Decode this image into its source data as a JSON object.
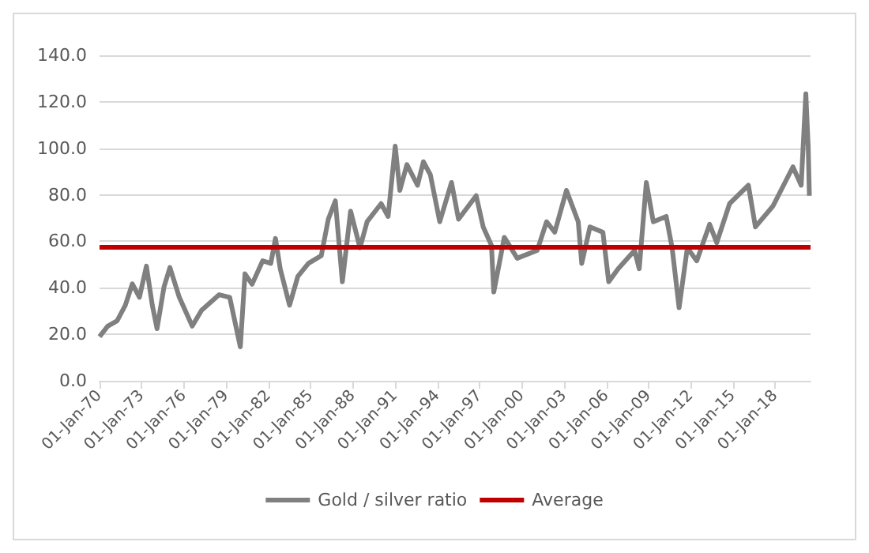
{
  "chart_data": {
    "type": "line",
    "legend": "bottom",
    "grid": "y",
    "marker": "none",
    "line_style": "solid",
    "xlim": [
      "1970-01-01",
      "2020-07-01"
    ],
    "xticks": [
      {
        "value": "1970-01-01",
        "label": "01-Jan-70"
      },
      {
        "value": "1973-01-01",
        "label": "01-Jan-73"
      },
      {
        "value": "1976-01-01",
        "label": "01-Jan-76"
      },
      {
        "value": "1979-01-01",
        "label": "01-Jan-79"
      },
      {
        "value": "1982-01-01",
        "label": "01-Jan-82"
      },
      {
        "value": "1985-01-01",
        "label": "01-Jan-85"
      },
      {
        "value": "1988-01-01",
        "label": "01-Jan-88"
      },
      {
        "value": "1991-01-01",
        "label": "01-Jan-91"
      },
      {
        "value": "1994-01-01",
        "label": "01-Jan-94"
      },
      {
        "value": "1997-01-01",
        "label": "01-Jan-97"
      },
      {
        "value": "2000-01-01",
        "label": "01-Jan-00"
      },
      {
        "value": "2003-01-01",
        "label": "01-Jan-03"
      },
      {
        "value": "2006-01-01",
        "label": "01-Jan-06"
      },
      {
        "value": "2009-01-01",
        "label": "01-Jan-09"
      },
      {
        "value": "2012-01-01",
        "label": "01-Jan-12"
      },
      {
        "value": "2015-01-01",
        "label": "01-Jan-15"
      },
      {
        "value": "2018-01-01",
        "label": "01-Jan-18"
      }
    ],
    "ylim": [
      0,
      140
    ],
    "yticks": [
      {
        "value": 0,
        "label": "0.0"
      },
      {
        "value": 20,
        "label": "20.0"
      },
      {
        "value": 40,
        "label": "40.0"
      },
      {
        "value": 60,
        "label": "60.0"
      },
      {
        "value": 80,
        "label": "80.0"
      },
      {
        "value": 100,
        "label": "100.0"
      },
      {
        "value": 120,
        "label": "120.0"
      },
      {
        "value": 140,
        "label": "140.0"
      }
    ],
    "x": [
      "1970-01",
      "1970-08",
      "1971-04",
      "1971-11",
      "1972-05",
      "1972-11",
      "1973-05",
      "1973-10",
      "1974-02",
      "1974-08",
      "1975-01",
      "1975-09",
      "1976-08",
      "1977-04",
      "1978-07",
      "1979-04",
      "1980-01",
      "1980-05",
      "1980-11",
      "1981-08",
      "1982-03",
      "1982-07",
      "1982-11",
      "1983-07",
      "1984-02",
      "1984-11",
      "1985-10",
      "1986-04",
      "1986-10",
      "1987-04",
      "1987-11",
      "1988-07",
      "1989-01",
      "1990-01",
      "1990-07",
      "1991-01",
      "1991-05",
      "1991-11",
      "1992-08",
      "1993-01",
      "1993-07",
      "1994-03",
      "1995-01",
      "1995-07",
      "1996-10",
      "1997-04",
      "1997-11",
      "1998-01",
      "1998-10",
      "1999-09",
      "2001-02",
      "2001-10",
      "2002-05",
      "2003-03",
      "2004-01",
      "2004-04",
      "2004-11",
      "2005-10",
      "2006-03",
      "2006-11",
      "2008-01",
      "2008-05",
      "2008-11",
      "2009-05",
      "2010-04",
      "2010-09",
      "2011-03",
      "2011-10",
      "2012-06",
      "2013-05",
      "2013-11",
      "2014-10",
      "2016-02",
      "2016-08",
      "2017-11",
      "2019-04",
      "2019-11",
      "2020-03",
      "2020-05",
      "2020-06"
    ],
    "series": [
      {
        "name": "Gold / silver ratio",
        "color": "#808080",
        "values": [
          19.0,
          23.5,
          25.8,
          32.5,
          41.7,
          35.9,
          49.3,
          32.5,
          22.4,
          40.4,
          48.7,
          35.9,
          23.5,
          30.3,
          37.0,
          35.9,
          14.6,
          46.0,
          41.5,
          51.6,
          50.5,
          61.2,
          48.2,
          32.5,
          44.9,
          50.5,
          53.8,
          69.5,
          77.4,
          42.6,
          73.0,
          57.2,
          68.4,
          76.2,
          70.7,
          100.9,
          81.9,
          93.0,
          84.1,
          94.2,
          88.6,
          68.4,
          85.3,
          69.5,
          79.6,
          66.2,
          58.3,
          38.2,
          61.7,
          52.7,
          56.1,
          68.4,
          63.9,
          81.9,
          68.4,
          50.5,
          66.2,
          63.9,
          42.6,
          48.2,
          56.1,
          48.2,
          85.3,
          68.4,
          70.7,
          57.2,
          31.4,
          57.2,
          51.6,
          67.3,
          59.4,
          76.2,
          84.1,
          66.2,
          75.2,
          92.0,
          84.1,
          123.4,
          100.9,
          79.6
        ]
      }
    ],
    "ref_lines": [
      {
        "axis": "y",
        "value": 57.4,
        "label": "Average",
        "color": "#c00000"
      }
    ]
  }
}
